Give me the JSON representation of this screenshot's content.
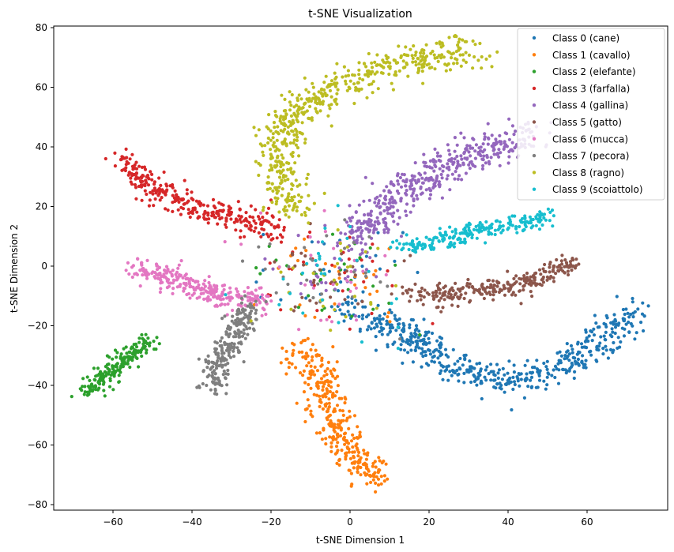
{
  "chart_data": {
    "type": "scatter",
    "title": "t-SNE Visualization",
    "xlabel": "t-SNE Dimension 1",
    "ylabel": "t-SNE Dimension 2",
    "xlim": [
      -75,
      80
    ],
    "ylim": [
      -82,
      81
    ],
    "xticks": [
      -60,
      -40,
      -20,
      0,
      20,
      40,
      60
    ],
    "yticks": [
      -80,
      -60,
      -40,
      -20,
      0,
      20,
      40,
      60,
      80
    ],
    "grid": false,
    "legend_position": "upper right",
    "series": [
      {
        "name": "Class 0 (cane)",
        "color": "#1f77b4",
        "count": 520,
        "spread": 2.6,
        "spine": [
          [
            -2,
            -13
          ],
          [
            8,
            -18
          ],
          [
            18,
            -26
          ],
          [
            28,
            -35
          ],
          [
            38,
            -38
          ],
          [
            48,
            -37
          ],
          [
            58,
            -31
          ],
          [
            66,
            -22
          ],
          [
            72,
            -15
          ]
        ]
      },
      {
        "name": "Class 1 (cavallo)",
        "color": "#ff7f0e",
        "count": 330,
        "spread": 2.6,
        "spine": [
          [
            -14,
            -28
          ],
          [
            -9,
            -33
          ],
          [
            -6,
            -40
          ],
          [
            -5,
            -50
          ],
          [
            -3,
            -58
          ],
          [
            2,
            -65
          ],
          [
            8,
            -73
          ]
        ]
      },
      {
        "name": "Class 2 (elefante)",
        "color": "#2ca02c",
        "count": 200,
        "spread": 1.6,
        "spine": [
          [
            -67,
            -43
          ],
          [
            -63,
            -38
          ],
          [
            -59,
            -33
          ],
          [
            -55,
            -29
          ],
          [
            -51,
            -26
          ]
        ]
      },
      {
        "name": "Class 3 (farfalla)",
        "color": "#d62728",
        "count": 300,
        "spread": 2.2,
        "spine": [
          [
            -58,
            36
          ],
          [
            -54,
            31
          ],
          [
            -48,
            25
          ],
          [
            -40,
            20
          ],
          [
            -32,
            17
          ],
          [
            -24,
            15
          ],
          [
            -17,
            12
          ]
        ]
      },
      {
        "name": "Class 4 (gallina)",
        "color": "#9467bd",
        "count": 440,
        "spread": 3.0,
        "spine": [
          [
            0,
            8
          ],
          [
            5,
            16
          ],
          [
            10,
            22
          ],
          [
            16,
            28
          ],
          [
            24,
            34
          ],
          [
            32,
            38
          ],
          [
            40,
            42
          ],
          [
            46,
            44
          ]
        ]
      },
      {
        "name": "Class 5 (gatto)",
        "color": "#8c564b",
        "count": 260,
        "spread": 1.8,
        "spine": [
          [
            14,
            -9
          ],
          [
            24,
            -10
          ],
          [
            34,
            -8
          ],
          [
            44,
            -6
          ],
          [
            51,
            -2
          ],
          [
            57,
            1
          ]
        ]
      },
      {
        "name": "Class 6 (mucca)",
        "color": "#e377c2",
        "count": 270,
        "spread": 2.0,
        "spine": [
          [
            -54,
            0
          ],
          [
            -48,
            -3
          ],
          [
            -42,
            -6
          ],
          [
            -36,
            -9
          ],
          [
            -29,
            -11
          ],
          [
            -22,
            -11
          ]
        ]
      },
      {
        "name": "Class 7 (pecora)",
        "color": "#7f7f7f",
        "count": 230,
        "spread": 1.8,
        "spine": [
          [
            -25,
            -13
          ],
          [
            -28,
            -20
          ],
          [
            -31,
            -27
          ],
          [
            -34,
            -34
          ],
          [
            -35,
            -42
          ]
        ]
      },
      {
        "name": "Class 8 (ragno)",
        "color": "#bcbd22",
        "count": 540,
        "spread": 3.0,
        "spine": [
          [
            -14,
            18
          ],
          [
            -17,
            28
          ],
          [
            -19,
            38
          ],
          [
            -16,
            48
          ],
          [
            -12,
            55
          ],
          [
            -4,
            60
          ],
          [
            6,
            65
          ],
          [
            16,
            69
          ],
          [
            26,
            72
          ],
          [
            33,
            71
          ]
        ]
      },
      {
        "name": "Class 9 (scoiattolo)",
        "color": "#17becf",
        "count": 230,
        "spread": 1.6,
        "spine": [
          [
            13,
            6
          ],
          [
            21,
            8
          ],
          [
            29,
            11
          ],
          [
            37,
            13
          ],
          [
            45,
            15
          ],
          [
            51,
            17
          ]
        ]
      }
    ],
    "noise_center": [
      -5,
      -3
    ],
    "noise_count_per_class": 30
  },
  "legend": {
    "items": [
      "Class 0 (cane)",
      "Class 1 (cavallo)",
      "Class 2 (elefante)",
      "Class 3 (farfalla)",
      "Class 4 (gallina)",
      "Class 5 (gatto)",
      "Class 6 (mucca)",
      "Class 7 (pecora)",
      "Class 8 (ragno)",
      "Class 9 (scoiattolo)"
    ]
  }
}
